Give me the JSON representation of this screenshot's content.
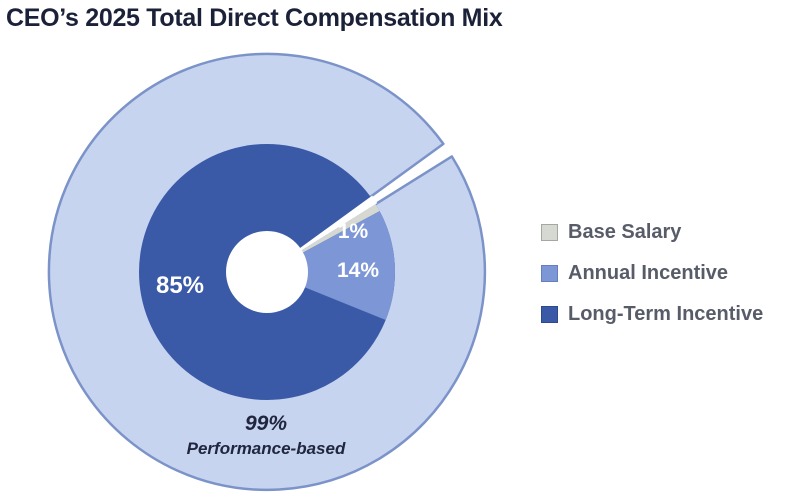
{
  "title": "CEO’s 2025 Total Direct Compensation Mix",
  "chart_data": {
    "type": "pie",
    "subtype": "donut with outer ring, 1% slice exploded by a white gap",
    "title": "CEO’s 2025 Total Direct Compensation Mix",
    "categories": [
      "Base Salary",
      "Annual Incentive",
      "Long-Term Incentive"
    ],
    "values": [
      1,
      14,
      85
    ],
    "unit": "percent",
    "slice_labels": [
      "1%",
      "14%",
      "85%"
    ],
    "colors": [
      "#d6d9d2",
      "#7d96d6",
      "#3a5aa8"
    ],
    "outer_ring": {
      "label": "99% Performance-based",
      "fill": "#c7d4ef",
      "border": "#7b93c8",
      "notch_at": "Base Salary"
    },
    "start_angle_deg": 58,
    "gap_width_deg": 4,
    "legend_position": "right",
    "annotation": {
      "percent": "99%",
      "caption": "Performance-based"
    }
  },
  "legend": {
    "items": [
      {
        "label": "Base Salary",
        "color": "#d6d9d2",
        "border": "#a3a8a0"
      },
      {
        "label": "Annual Incentive",
        "color": "#7d96d6",
        "border": "#647ec0"
      },
      {
        "label": "Long-Term Incentive",
        "color": "#3a5aa8",
        "border": "#2e4a8f"
      }
    ]
  }
}
